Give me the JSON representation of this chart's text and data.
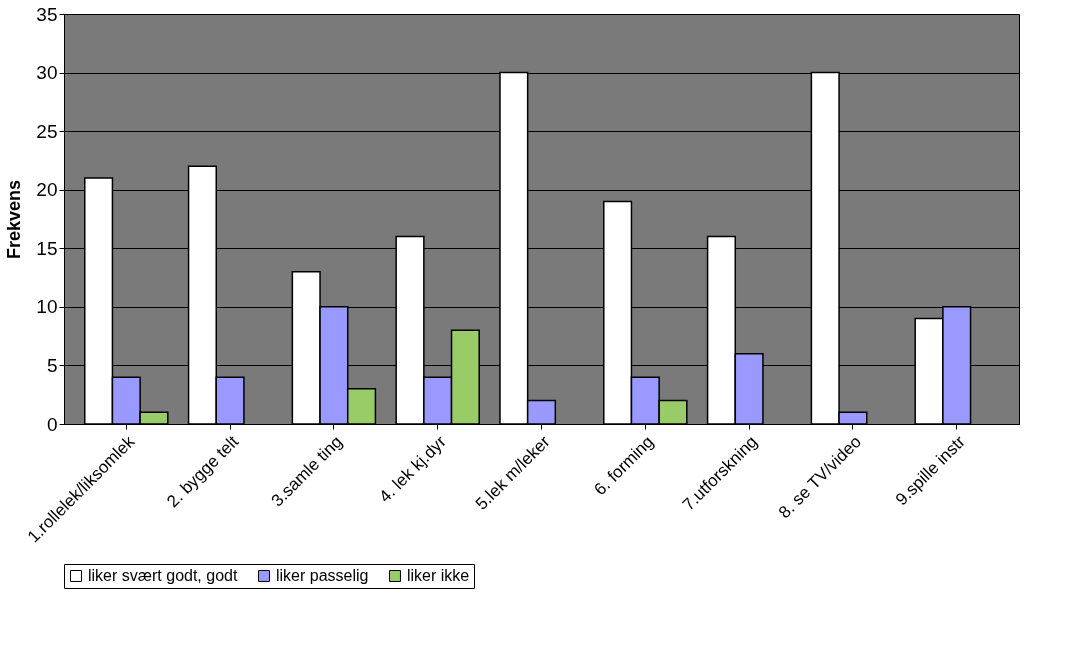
{
  "chart_data": {
    "type": "bar",
    "ylabel": "Frekvens",
    "categories": [
      "1.rollelek/liksomlek",
      "2. bygge telt",
      "3.samle ting",
      "4. lek kj.dyr",
      "5.lek m/leker",
      "6. forming",
      "7.utforskning",
      "8. se TV/video",
      "9.spille instr"
    ],
    "series": [
      {
        "name": "liker svært godt, godt",
        "color": "#ffffff",
        "values": [
          21,
          22,
          13,
          16,
          30,
          19,
          16,
          30,
          9
        ]
      },
      {
        "name": "liker passelig",
        "color": "#9999ff",
        "values": [
          4,
          4,
          10,
          4,
          2,
          4,
          6,
          1,
          10
        ]
      },
      {
        "name": "liker ikke",
        "color": "#99cc66",
        "values": [
          1,
          null,
          3,
          8,
          null,
          2,
          null,
          null,
          null
        ]
      }
    ],
    "ylim": [
      0,
      35
    ],
    "yticks": [
      0,
      5,
      10,
      15,
      20,
      25,
      30,
      35
    ],
    "grid": "y",
    "legend": "bottom"
  }
}
